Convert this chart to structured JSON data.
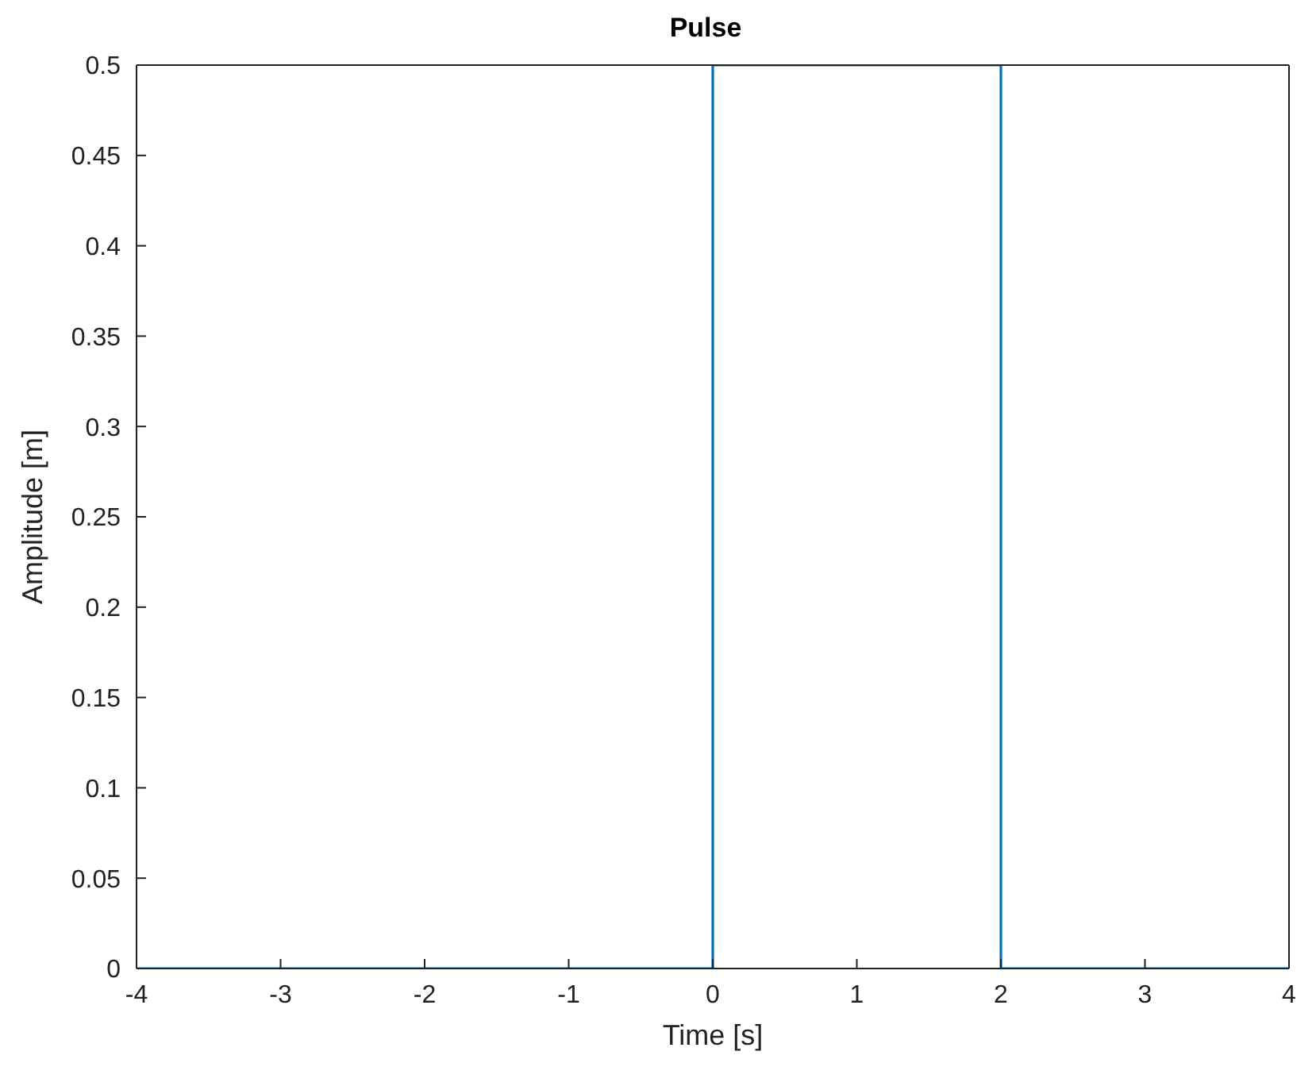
{
  "chart_data": {
    "type": "line",
    "title": "Pulse",
    "xlabel": "Time [s]",
    "ylabel": "Amplitude [m]",
    "x": [
      -4,
      0,
      0,
      2,
      2,
      4
    ],
    "series": [
      {
        "color": "#0072bd",
        "values": [
          0,
          0,
          0.5,
          0.5,
          0,
          0
        ]
      }
    ],
    "xlim": [
      -4,
      4
    ],
    "xticks": [
      -4,
      -3,
      -2,
      -1,
      0,
      1,
      2,
      3,
      4
    ],
    "ylim": [
      0,
      0.5
    ],
    "yticks": [
      0,
      0.05,
      0.1,
      0.15,
      0.2,
      0.25,
      0.3,
      0.35,
      0.4,
      0.45,
      0.5
    ],
    "grid": false,
    "legend": false,
    "marker": "none",
    "line_style": "solid"
  }
}
